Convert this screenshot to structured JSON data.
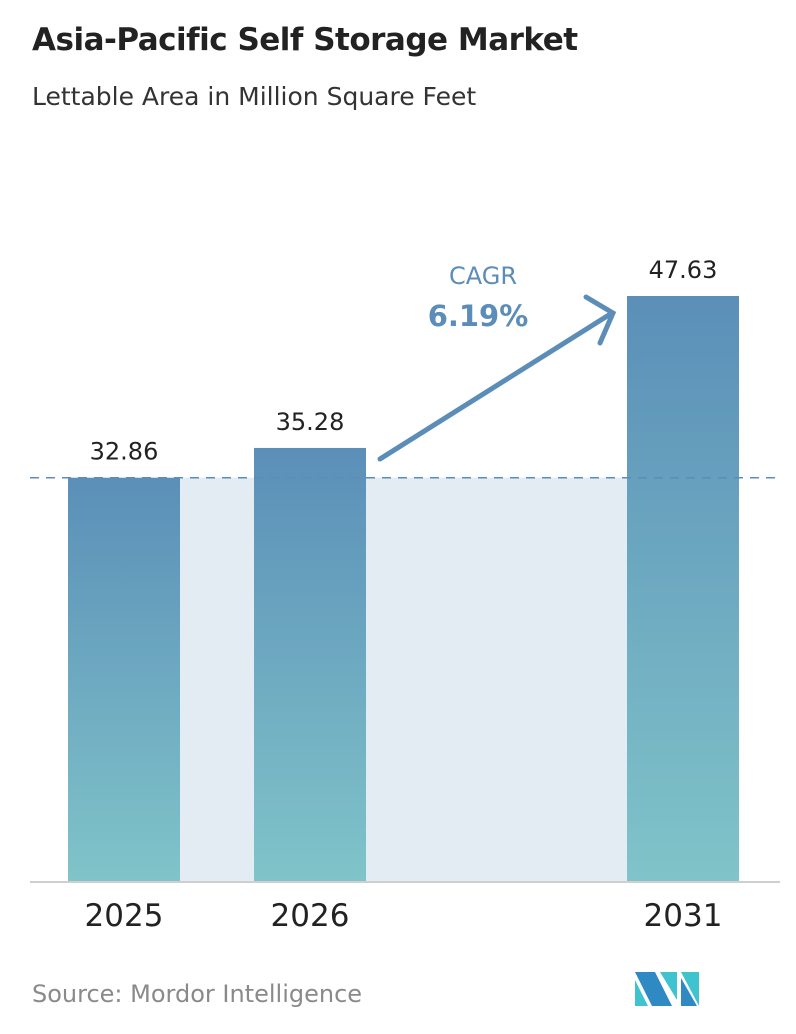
{
  "chart_data": {
    "type": "bar",
    "title": "Asia-Pacific Self Storage Market",
    "subtitle": "Lettable Area in Million Square Feet",
    "categories": [
      "2025",
      "2026",
      "2031"
    ],
    "values": [
      32.86,
      35.28,
      47.63
    ],
    "value_labels": [
      "32.86",
      "35.28",
      "47.63"
    ],
    "xlabel": "",
    "ylabel": "",
    "ylim": [
      0,
      47.63
    ],
    "grid": false,
    "annotation": {
      "label": "CAGR",
      "value": "6.19%"
    },
    "source": "Source:  Mordor Intelligence"
  },
  "colors": {
    "bar_top": "#5b8fb8",
    "bar_bottom": "#7fc3c8",
    "shade": "#e3ecf3",
    "accent": "#5b8db8"
  }
}
